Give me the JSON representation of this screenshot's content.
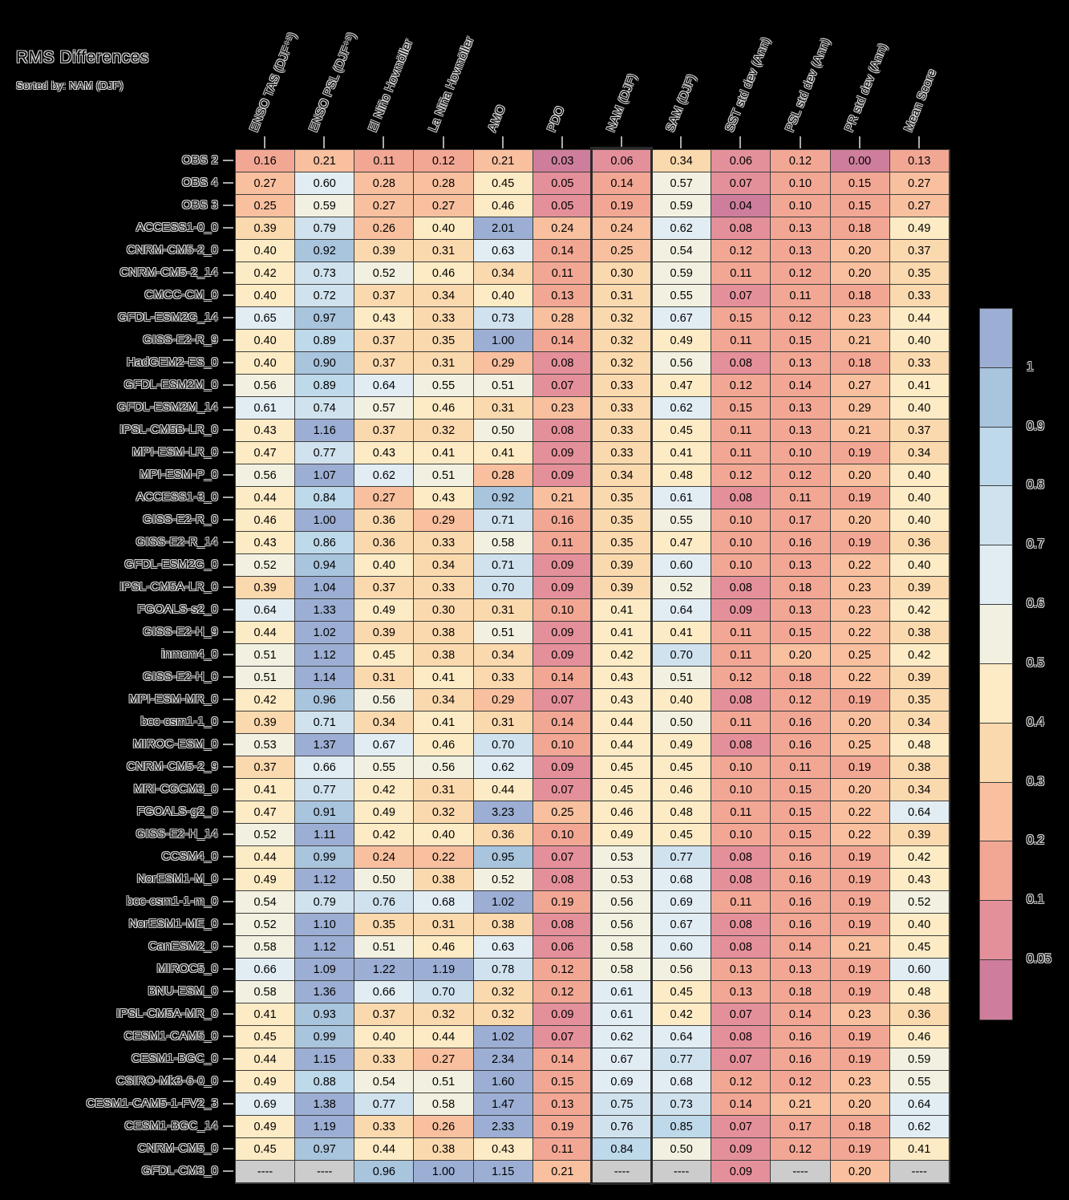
{
  "title": "RMS Differences",
  "subtitle": "Sorted by: NAM (DJF)",
  "chart_data": {
    "type": "heatmap",
    "columns": [
      "ENSO TAS (DJF⁺¹)",
      "ENSO PSL (DJF⁺¹)",
      "El Niño Hovmöller",
      "La Niña Hovmöller",
      "AMO",
      "PDO",
      "NAM (DJF)",
      "SAM (DJF)",
      "SST std dev (Ann)",
      "PSL std dev (Ann)",
      "PR std dev (Ann)",
      "Mean Score"
    ],
    "highlighted_column": "NAM (DJF)",
    "highlighted_column_index": 6,
    "missing_label": "----",
    "rows": [
      "OBS 2",
      "OBS 4",
      "OBS 3",
      "ACCESS1-0_0",
      "CNRM-CM5-2_0",
      "CNRM-CM5-2_14",
      "CMCC-CM_0",
      "GFDL-ESM2G_14",
      "GISS-E2-R_9",
      "HadGEM2-ES_0",
      "GFDL-ESM2M_0",
      "GFDL-ESM2M_14",
      "IPSL-CM5B-LR_0",
      "MPI-ESM-LR_0",
      "MPI-ESM-P_0",
      "ACCESS1-3_0",
      "GISS-E2-R_0",
      "GISS-E2-R_14",
      "GFDL-ESM2G_0",
      "IPSL-CM5A-LR_0",
      "FGOALS-s2_0",
      "GISS-E2-H_9",
      "inmcm4_0",
      "GISS-E2-H_0",
      "MPI-ESM-MR_0",
      "bcc-csm1-1_0",
      "MIROC-ESM_0",
      "CNRM-CM5-2_9",
      "MRI-CGCM3_0",
      "FGOALS-g2_0",
      "GISS-E2-H_14",
      "CCSM4_0",
      "NorESM1-M_0",
      "bcc-csm1-1-m_0",
      "NorESM1-ME_0",
      "CanESM2_0",
      "MIROC5_0",
      "BNU-ESM_0",
      "IPSL-CM5A-MR_0",
      "CESM1-CAM5_0",
      "CESM1-BGC_0",
      "CSIRO-Mk3-6-0_0",
      "CESM1-CAM5-1-FV2_3",
      "CESM1-BGC_14",
      "CNRM-CM5_0",
      "GFDL-CM3_0"
    ],
    "values": [
      [
        "0.16",
        "0.21",
        "0.11",
        "0.12",
        "0.21",
        "0.03",
        "0.06",
        "0.34",
        "0.06",
        "0.12",
        "0.00",
        "0.13"
      ],
      [
        "0.27",
        "0.60",
        "0.28",
        "0.28",
        "0.45",
        "0.05",
        "0.14",
        "0.57",
        "0.07",
        "0.10",
        "0.15",
        "0.27"
      ],
      [
        "0.25",
        "0.59",
        "0.27",
        "0.27",
        "0.46",
        "0.05",
        "0.19",
        "0.59",
        "0.04",
        "0.10",
        "0.15",
        "0.27"
      ],
      [
        "0.39",
        "0.79",
        "0.26",
        "0.40",
        "2.01",
        "0.24",
        "0.24",
        "0.62",
        "0.08",
        "0.13",
        "0.18",
        "0.49"
      ],
      [
        "0.40",
        "0.92",
        "0.39",
        "0.31",
        "0.63",
        "0.14",
        "0.25",
        "0.54",
        "0.12",
        "0.13",
        "0.20",
        "0.37"
      ],
      [
        "0.42",
        "0.73",
        "0.52",
        "0.46",
        "0.34",
        "0.11",
        "0.30",
        "0.59",
        "0.11",
        "0.12",
        "0.20",
        "0.35"
      ],
      [
        "0.40",
        "0.72",
        "0.37",
        "0.34",
        "0.40",
        "0.13",
        "0.31",
        "0.55",
        "0.07",
        "0.11",
        "0.18",
        "0.33"
      ],
      [
        "0.65",
        "0.97",
        "0.43",
        "0.33",
        "0.73",
        "0.28",
        "0.32",
        "0.67",
        "0.15",
        "0.12",
        "0.23",
        "0.44"
      ],
      [
        "0.40",
        "0.89",
        "0.37",
        "0.35",
        "1.00",
        "0.14",
        "0.32",
        "0.49",
        "0.11",
        "0.15",
        "0.21",
        "0.40"
      ],
      [
        "0.40",
        "0.90",
        "0.37",
        "0.31",
        "0.29",
        "0.08",
        "0.32",
        "0.56",
        "0.08",
        "0.13",
        "0.18",
        "0.33"
      ],
      [
        "0.56",
        "0.89",
        "0.64",
        "0.55",
        "0.51",
        "0.07",
        "0.33",
        "0.47",
        "0.12",
        "0.14",
        "0.27",
        "0.41"
      ],
      [
        "0.61",
        "0.74",
        "0.57",
        "0.46",
        "0.31",
        "0.23",
        "0.33",
        "0.62",
        "0.15",
        "0.13",
        "0.29",
        "0.40"
      ],
      [
        "0.43",
        "1.16",
        "0.37",
        "0.32",
        "0.50",
        "0.08",
        "0.33",
        "0.45",
        "0.11",
        "0.13",
        "0.21",
        "0.37"
      ],
      [
        "0.47",
        "0.77",
        "0.43",
        "0.41",
        "0.41",
        "0.09",
        "0.33",
        "0.41",
        "0.11",
        "0.10",
        "0.19",
        "0.34"
      ],
      [
        "0.56",
        "1.07",
        "0.62",
        "0.51",
        "0.28",
        "0.09",
        "0.34",
        "0.48",
        "0.12",
        "0.12",
        "0.20",
        "0.40"
      ],
      [
        "0.44",
        "0.84",
        "0.27",
        "0.43",
        "0.92",
        "0.21",
        "0.35",
        "0.61",
        "0.08",
        "0.11",
        "0.19",
        "0.40"
      ],
      [
        "0.46",
        "1.00",
        "0.36",
        "0.29",
        "0.71",
        "0.16",
        "0.35",
        "0.55",
        "0.10",
        "0.17",
        "0.20",
        "0.40"
      ],
      [
        "0.43",
        "0.86",
        "0.36",
        "0.33",
        "0.58",
        "0.11",
        "0.35",
        "0.47",
        "0.10",
        "0.16",
        "0.19",
        "0.36"
      ],
      [
        "0.52",
        "0.94",
        "0.40",
        "0.34",
        "0.71",
        "0.09",
        "0.39",
        "0.60",
        "0.10",
        "0.13",
        "0.22",
        "0.40"
      ],
      [
        "0.39",
        "1.04",
        "0.37",
        "0.33",
        "0.70",
        "0.09",
        "0.39",
        "0.52",
        "0.08",
        "0.18",
        "0.23",
        "0.39"
      ],
      [
        "0.64",
        "1.33",
        "0.49",
        "0.30",
        "0.31",
        "0.10",
        "0.41",
        "0.64",
        "0.09",
        "0.13",
        "0.23",
        "0.42"
      ],
      [
        "0.44",
        "1.02",
        "0.39",
        "0.38",
        "0.51",
        "0.09",
        "0.41",
        "0.41",
        "0.11",
        "0.15",
        "0.22",
        "0.38"
      ],
      [
        "0.51",
        "1.12",
        "0.45",
        "0.38",
        "0.34",
        "0.09",
        "0.42",
        "0.70",
        "0.11",
        "0.20",
        "0.25",
        "0.42"
      ],
      [
        "0.51",
        "1.14",
        "0.31",
        "0.41",
        "0.33",
        "0.14",
        "0.43",
        "0.51",
        "0.12",
        "0.18",
        "0.22",
        "0.39"
      ],
      [
        "0.42",
        "0.96",
        "0.56",
        "0.34",
        "0.29",
        "0.07",
        "0.43",
        "0.40",
        "0.08",
        "0.12",
        "0.19",
        "0.35"
      ],
      [
        "0.39",
        "0.71",
        "0.34",
        "0.41",
        "0.31",
        "0.14",
        "0.44",
        "0.50",
        "0.11",
        "0.16",
        "0.20",
        "0.34"
      ],
      [
        "0.53",
        "1.37",
        "0.67",
        "0.46",
        "0.70",
        "0.10",
        "0.44",
        "0.49",
        "0.08",
        "0.16",
        "0.25",
        "0.48"
      ],
      [
        "0.37",
        "0.66",
        "0.55",
        "0.56",
        "0.62",
        "0.09",
        "0.45",
        "0.45",
        "0.10",
        "0.11",
        "0.19",
        "0.38"
      ],
      [
        "0.41",
        "0.77",
        "0.42",
        "0.31",
        "0.44",
        "0.07",
        "0.45",
        "0.46",
        "0.10",
        "0.15",
        "0.20",
        "0.34"
      ],
      [
        "0.47",
        "0.91",
        "0.49",
        "0.32",
        "3.23",
        "0.25",
        "0.46",
        "0.48",
        "0.11",
        "0.15",
        "0.22",
        "0.64"
      ],
      [
        "0.52",
        "1.11",
        "0.42",
        "0.40",
        "0.36",
        "0.10",
        "0.49",
        "0.45",
        "0.10",
        "0.15",
        "0.22",
        "0.39"
      ],
      [
        "0.44",
        "0.99",
        "0.24",
        "0.22",
        "0.95",
        "0.07",
        "0.53",
        "0.77",
        "0.08",
        "0.16",
        "0.19",
        "0.42"
      ],
      [
        "0.49",
        "1.12",
        "0.50",
        "0.38",
        "0.52",
        "0.08",
        "0.53",
        "0.68",
        "0.08",
        "0.16",
        "0.19",
        "0.43"
      ],
      [
        "0.54",
        "0.79",
        "0.76",
        "0.68",
        "1.02",
        "0.19",
        "0.56",
        "0.69",
        "0.11",
        "0.16",
        "0.19",
        "0.52"
      ],
      [
        "0.52",
        "1.10",
        "0.35",
        "0.31",
        "0.38",
        "0.08",
        "0.56",
        "0.67",
        "0.08",
        "0.16",
        "0.19",
        "0.40"
      ],
      [
        "0.58",
        "1.12",
        "0.51",
        "0.46",
        "0.63",
        "0.06",
        "0.58",
        "0.60",
        "0.08",
        "0.14",
        "0.21",
        "0.45"
      ],
      [
        "0.66",
        "1.09",
        "1.22",
        "1.19",
        "0.78",
        "0.12",
        "0.58",
        "0.56",
        "0.13",
        "0.13",
        "0.19",
        "0.60"
      ],
      [
        "0.58",
        "1.36",
        "0.66",
        "0.70",
        "0.32",
        "0.12",
        "0.61",
        "0.45",
        "0.13",
        "0.18",
        "0.19",
        "0.48"
      ],
      [
        "0.41",
        "0.93",
        "0.37",
        "0.32",
        "0.32",
        "0.09",
        "0.61",
        "0.42",
        "0.07",
        "0.14",
        "0.23",
        "0.36"
      ],
      [
        "0.45",
        "0.99",
        "0.40",
        "0.44",
        "1.02",
        "0.07",
        "0.62",
        "0.64",
        "0.08",
        "0.16",
        "0.19",
        "0.46"
      ],
      [
        "0.44",
        "1.15",
        "0.33",
        "0.27",
        "2.34",
        "0.14",
        "0.67",
        "0.77",
        "0.07",
        "0.16",
        "0.19",
        "0.59"
      ],
      [
        "0.49",
        "0.88",
        "0.54",
        "0.51",
        "1.60",
        "0.15",
        "0.69",
        "0.68",
        "0.12",
        "0.12",
        "0.23",
        "0.55"
      ],
      [
        "0.69",
        "1.38",
        "0.77",
        "0.58",
        "1.47",
        "0.13",
        "0.75",
        "0.73",
        "0.14",
        "0.21",
        "0.20",
        "0.64"
      ],
      [
        "0.49",
        "1.19",
        "0.33",
        "0.26",
        "2.33",
        "0.19",
        "0.76",
        "0.85",
        "0.07",
        "0.17",
        "0.18",
        "0.62"
      ],
      [
        "0.45",
        "0.97",
        "0.44",
        "0.38",
        "0.43",
        "0.11",
        "0.84",
        "0.50",
        "0.09",
        "0.12",
        "0.19",
        "0.41"
      ],
      [
        "----",
        "----",
        "0.96",
        "1.00",
        "1.15",
        "0.21",
        "----",
        "----",
        "0.09",
        "----",
        "0.20",
        "----"
      ]
    ],
    "colorbar": {
      "tick_labels": [
        "1",
        "0.9",
        "0.8",
        "0.7",
        "0.6",
        "0.5",
        "0.4",
        "0.3",
        "0.2",
        "0.1",
        "0.05"
      ],
      "bin_edges": [
        0.05,
        0.1,
        0.2,
        0.3,
        0.4,
        0.5,
        0.6,
        0.7,
        0.8,
        0.9,
        1.0
      ],
      "bin_colors_low_to_high": [
        "#ce7e9c",
        "#e4909a",
        "#f2a794",
        "#f8c09f",
        "#fbd9ae",
        "#fcebc4",
        "#f2f1e1",
        "#e2edf3",
        "#d0e2ee",
        "#bdd9ea",
        "#a9c4dd",
        "#9caed3"
      ],
      "missing_color": "#cccccc"
    }
  }
}
